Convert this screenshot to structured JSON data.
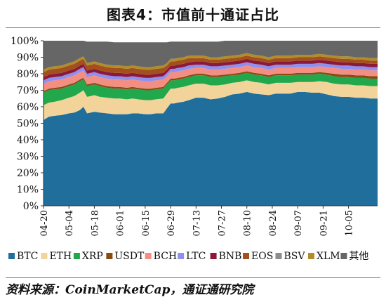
{
  "figure": {
    "title": "图表4：市值前十通证占比",
    "source": "资料来源：CoinMarketCap，通证通研究院"
  },
  "chart_data": {
    "type": "area",
    "stacked": true,
    "y_unit": "%",
    "ylim": [
      0,
      100
    ],
    "y_ticks": [
      "0%",
      "10%",
      "20%",
      "30%",
      "40%",
      "50%",
      "60%",
      "70%",
      "80%",
      "90%",
      "100%"
    ],
    "x_tick_labels": [
      "04-20",
      "05-04",
      "05-18",
      "06-01",
      "06-15",
      "06-29",
      "07-13",
      "07-27",
      "08-10",
      "08-24",
      "09-07",
      "09-21",
      "10-05"
    ],
    "x_tick_positions": [
      0,
      14,
      28,
      42,
      56,
      70,
      84,
      98,
      112,
      126,
      140,
      154,
      168
    ],
    "x_days_total": 184,
    "grid": false,
    "legend_position": "bottom",
    "x": [
      0,
      3,
      6,
      10,
      14,
      17,
      20,
      22,
      24,
      26,
      28,
      31,
      35,
      39,
      42,
      46,
      49,
      52,
      56,
      59,
      62,
      66,
      68,
      70,
      72,
      74,
      77,
      80,
      84,
      88,
      92,
      96,
      100,
      104,
      108,
      112,
      116,
      120,
      124,
      128,
      132,
      136,
      140,
      144,
      148,
      152,
      156,
      160,
      164,
      168,
      172,
      176,
      180,
      184
    ],
    "series": [
      {
        "name": "BTC",
        "color": "#1f6e9c",
        "values": [
          52,
          54,
          54.5,
          55,
          56,
          56.5,
          58,
          60,
          56,
          56.5,
          57,
          56.5,
          56,
          55.5,
          55.5,
          55.5,
          56,
          56,
          55.5,
          55.5,
          56,
          56,
          59,
          62,
          62,
          62.5,
          63,
          64,
          65.5,
          65.5,
          64.5,
          65,
          66,
          67.5,
          68,
          69,
          68,
          67.5,
          67,
          68,
          68,
          68,
          69,
          69,
          68.5,
          68.5,
          67.5,
          66.5,
          66,
          66,
          65.5,
          65.5,
          65,
          65
        ]
      },
      {
        "name": "ETH",
        "color": "#f2d49a",
        "values": [
          9,
          8.5,
          8.5,
          9,
          9.5,
          10,
          10.5,
          10,
          10,
          10,
          10,
          9.5,
          9.5,
          9.5,
          9.5,
          9,
          9,
          8.5,
          8.5,
          8.5,
          8.5,
          9,
          9,
          9,
          9,
          9,
          9,
          9,
          8.5,
          8.5,
          8.5,
          8,
          7.5,
          7,
          7,
          7,
          7,
          7,
          6.5,
          6.5,
          6.5,
          6.5,
          6,
          6,
          6.5,
          7,
          7.5,
          7.5,
          7.5,
          7.5,
          7.5,
          7.5,
          7.5,
          7.5
        ]
      },
      {
        "name": "XRP",
        "color": "#22a84c",
        "values": [
          7.5,
          7.5,
          7.5,
          7,
          7,
          7,
          7,
          6.5,
          6.5,
          6.5,
          6.5,
          6.5,
          6,
          6,
          6,
          6,
          6,
          6,
          6,
          6,
          6,
          6,
          5.5,
          5,
          5,
          5,
          5,
          5,
          5,
          5,
          5,
          5,
          5,
          4.5,
          4.5,
          4.5,
          4.5,
          4.5,
          4.5,
          4.5,
          4.5,
          4.5,
          4.5,
          4.5,
          4.5,
          4.5,
          4.5,
          4.5,
          4.5,
          4.5,
          4.5,
          4.5,
          4.5,
          4.5
        ]
      },
      {
        "name": "USDT",
        "color": "#8a4b13",
        "values": [
          1,
          1,
          1,
          1,
          1,
          1,
          1,
          1,
          1,
          1,
          1,
          1,
          1,
          1,
          1,
          1,
          1,
          1,
          1,
          1,
          1,
          1,
          1,
          1,
          1,
          1,
          1,
          1,
          1,
          1,
          1,
          1,
          1,
          1,
          1,
          1,
          1,
          1,
          1,
          1,
          1,
          1,
          1,
          1,
          1,
          1,
          1,
          1.5,
          1.5,
          1.5,
          1.5,
          1.5,
          1.5,
          1.5
        ]
      },
      {
        "name": "BCH",
        "color": "#f28e82",
        "values": [
          4.5,
          4.5,
          4.5,
          4.5,
          4.5,
          4.5,
          4.5,
          4.5,
          4.5,
          4.5,
          4.5,
          4.5,
          4.5,
          4.5,
          4.5,
          4.5,
          4.5,
          4.5,
          4.5,
          4.5,
          4.5,
          4.5,
          4,
          4,
          4,
          4,
          4,
          4,
          3.5,
          3.5,
          3.5,
          3.5,
          3.5,
          3.5,
          3.5,
          3.5,
          3.5,
          3.5,
          3.5,
          3.5,
          3.5,
          3.5,
          3.5,
          3.5,
          3.5,
          3.5,
          3.5,
          3.5,
          3.5,
          3.5,
          3.5,
          3.5,
          3.5,
          3.5
        ]
      },
      {
        "name": "LTC",
        "color": "#8f8ff0",
        "values": [
          2,
          2,
          2,
          2,
          2,
          2,
          2,
          2,
          2,
          2,
          2,
          2,
          2,
          2,
          2,
          2,
          2,
          2,
          2,
          2,
          2,
          2,
          2,
          2,
          2,
          2,
          2,
          2,
          2,
          2,
          2,
          2,
          2,
          2,
          2,
          2,
          2,
          2,
          2,
          2,
          2,
          2,
          2,
          2,
          2,
          2,
          2,
          2,
          2,
          2,
          2,
          2,
          2,
          2
        ]
      },
      {
        "name": "BNB",
        "color": "#8b1a3a",
        "values": [
          2,
          2,
          2,
          2,
          2,
          2,
          2,
          2,
          2,
          2,
          2,
          2,
          2,
          2,
          2,
          2,
          2,
          2,
          2,
          2,
          2,
          2,
          2,
          2,
          2,
          2,
          2,
          2,
          2,
          2,
          2,
          2,
          2,
          2,
          2,
          2,
          2,
          2,
          2,
          2,
          2,
          2,
          2,
          2,
          2,
          2,
          2,
          2,
          2,
          2,
          2,
          2,
          2,
          2
        ]
      },
      {
        "name": "EOS",
        "color": "#a4501c",
        "values": [
          3,
          3,
          3,
          3,
          3,
          3,
          3,
          3,
          3,
          3,
          3,
          3,
          3,
          3,
          3,
          3,
          3,
          3,
          3,
          3,
          3,
          3,
          2.5,
          2.5,
          2.5,
          2.5,
          2.5,
          2.5,
          2,
          2,
          2,
          2,
          2,
          2,
          2,
          2,
          2,
          2,
          2,
          2,
          2,
          2,
          2,
          2,
          2,
          2,
          2,
          2,
          2,
          2,
          2,
          2,
          2,
          2
        ]
      },
      {
        "name": "BSV",
        "color": "#8d8d8d",
        "values": [
          0,
          0,
          0,
          0,
          0,
          0,
          0,
          0,
          0,
          0,
          0,
          0,
          0,
          0,
          0,
          0,
          0,
          0,
          0,
          0,
          0,
          0,
          0,
          0,
          0,
          0,
          0,
          0,
          0,
          0,
          0,
          0,
          0,
          0,
          0,
          0,
          0,
          0,
          0,
          0,
          0,
          0,
          0,
          0,
          0,
          0,
          0,
          0,
          0,
          0,
          0,
          0,
          0,
          0
        ]
      },
      {
        "name": "XLM",
        "color": "#b08d2a",
        "values": [
          1.5,
          1.5,
          1.5,
          1.5,
          1.5,
          1.5,
          1.5,
          1.5,
          1.5,
          1.5,
          1.5,
          1.5,
          1.5,
          1.5,
          1.5,
          1.5,
          1.5,
          1.5,
          1.5,
          1.5,
          1.5,
          1.5,
          1.5,
          1.5,
          1.5,
          1.5,
          1.5,
          1.5,
          1.5,
          1.5,
          1.5,
          1.5,
          1.5,
          1.5,
          1.5,
          1.5,
          1.5,
          1.5,
          1.5,
          1.5,
          1.5,
          1.5,
          1.5,
          1.5,
          1.5,
          1.5,
          1.5,
          1.5,
          1.5,
          1.5,
          1.5,
          1.5,
          1.5,
          1.5
        ]
      },
      {
        "name": "其他",
        "color": "#666666",
        "values": [
          17.5,
          16.5,
          16,
          15.5,
          14,
          13,
          11,
          10,
          13,
          12.5,
          12,
          13,
          14,
          14,
          14,
          14.5,
          14,
          14.5,
          15,
          15,
          14.5,
          14,
          12.5,
          10.5,
          10.5,
          10,
          9.5,
          8.5,
          8.5,
          8.5,
          9.5,
          9.5,
          9.5,
          9,
          8.5,
          7.5,
          8.5,
          9,
          10,
          9,
          9,
          9,
          8.5,
          8.5,
          8.5,
          8,
          8.5,
          9,
          9.5,
          9.5,
          10,
          10,
          10.5,
          10.5
        ]
      }
    ]
  }
}
